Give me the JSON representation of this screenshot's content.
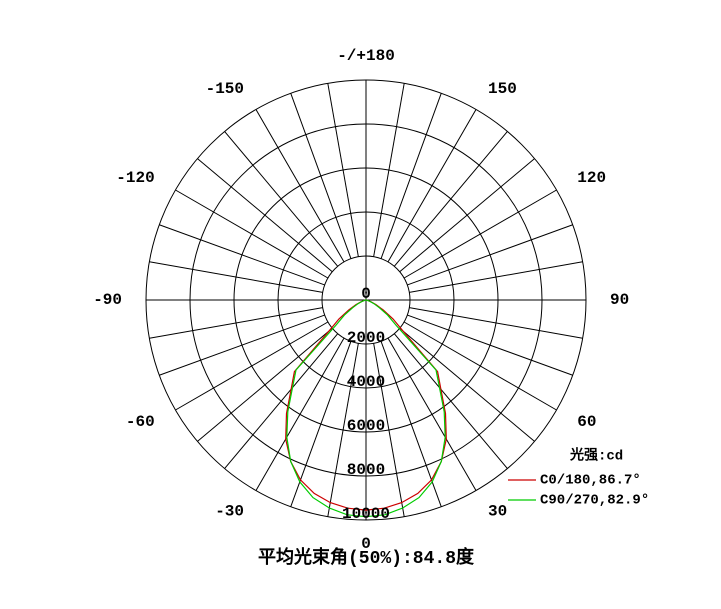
{
  "chart_data": {
    "type": "polar",
    "angles": [
      -90,
      -85,
      -80,
      -75,
      -70,
      -65,
      -60,
      -55,
      -50,
      -45,
      -40,
      -35,
      -30,
      -25,
      -20,
      -15,
      -10,
      -5,
      0,
      5,
      10,
      15,
      20,
      25,
      30,
      35,
      40,
      45,
      50,
      55,
      60,
      65,
      70,
      75,
      80,
      85,
      90
    ],
    "series": [
      {
        "name": "C0/180,86.7°",
        "color": "#cc0000",
        "values": [
          0,
          20,
          50,
          100,
          250,
          500,
          900,
          1500,
          2200,
          4600,
          5300,
          6300,
          7300,
          8100,
          8700,
          9100,
          9350,
          9500,
          9550,
          9500,
          9350,
          9100,
          8700,
          8100,
          7300,
          6300,
          5300,
          4600,
          2200,
          1500,
          900,
          500,
          250,
          100,
          50,
          20,
          0
        ]
      },
      {
        "name": "C90/270,82.9°",
        "color": "#00cc00",
        "values": [
          0,
          10,
          30,
          80,
          200,
          400,
          700,
          1200,
          1800,
          4500,
          5200,
          6200,
          7200,
          8100,
          8800,
          9300,
          9600,
          9800,
          9850,
          9800,
          9600,
          9300,
          8800,
          8100,
          7200,
          6200,
          5200,
          4500,
          1800,
          1200,
          700,
          400,
          200,
          80,
          30,
          10,
          0
        ]
      }
    ],
    "rlim": [
      0,
      10000
    ],
    "rticks": [
      0,
      2000,
      4000,
      6000,
      8000,
      10000
    ],
    "angle_ticks": [
      {
        "value": 180,
        "label": "-/+180"
      },
      150,
      120,
      90,
      60,
      30,
      0,
      -30,
      -60,
      -90,
      -120,
      -150
    ],
    "legend_title": "光强:cd",
    "annotation": "平均光束角(50%):84.8度"
  }
}
